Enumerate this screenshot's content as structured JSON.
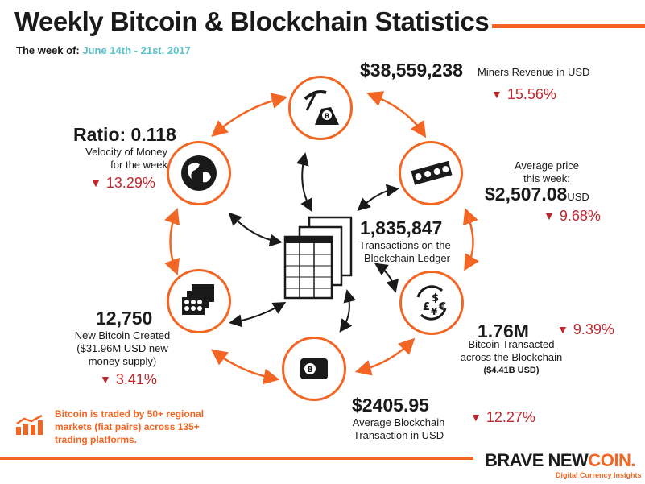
{
  "title": "Weekly Bitcoin & Blockchain Statistics",
  "week": {
    "label": "The week of:",
    "dates": "June 14th - 21st, 2017"
  },
  "stats": {
    "miners": {
      "value": "$38,559,238",
      "label": "Miners Revenue in USD",
      "change": "15.56%"
    },
    "ratio": {
      "value": "Ratio: 0.118",
      "line1": "Velocity of Money",
      "line2": "for the week",
      "change": "13.29%"
    },
    "price": {
      "line1": "Average price",
      "line2": "this week:",
      "value": "$2,507.08",
      "unit": "USD",
      "change": "9.68%"
    },
    "transactions": {
      "value": "1,835,847",
      "line1": "Transactions on the",
      "line2": "Blockchain Ledger"
    },
    "created": {
      "value": "12,750",
      "line1": "New Bitcoin Created",
      "line2": "($31.96M USD new",
      "line3": "money supply)",
      "change": "3.41%"
    },
    "transacted": {
      "value": "1.76M",
      "line1": "Bitcoin Transacted",
      "line2": "across the Blockchain",
      "line3": "($4.41B USD)",
      "change": "9.39%"
    },
    "avgtx": {
      "value": "$2405.95",
      "line1": "Average Blockchain",
      "line2": "Transaction in USD",
      "change": "12.27%"
    }
  },
  "note": "Bitcoin is traded by 50+ regional markets (fiat pairs) across 135+ trading platforms.",
  "brand": {
    "main": "BRAVE NEW",
    "accent": "COIN.",
    "tagline": "Digital Currency Insights"
  },
  "colors": {
    "accent": "#f26522",
    "negative": "#c0272d",
    "dates": "#5bc0c9",
    "text": "#1a1a1a"
  }
}
